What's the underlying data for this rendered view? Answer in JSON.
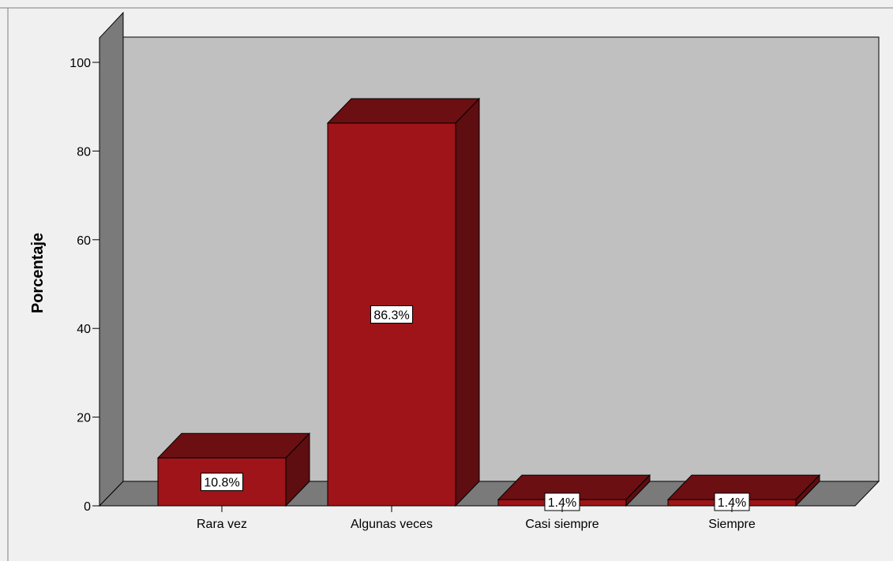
{
  "chart_data": {
    "type": "bar",
    "title": "",
    "xlabel": "",
    "ylabel": "Porcentaje",
    "categories": [
      "Rara vez",
      "Algunas veces",
      "Casi siempre",
      "Siempre"
    ],
    "values": [
      10.8,
      86.3,
      1.4,
      1.4
    ],
    "data_labels": [
      "10.8%",
      "86.3%",
      "1.4%",
      "1.4%"
    ],
    "yticks": [
      "0",
      "20",
      "40",
      "60",
      "80",
      "100"
    ],
    "ylim": [
      0,
      100
    ],
    "grid": false,
    "three_d": true,
    "colors": {
      "bar_front": "#9e1418",
      "bar_top": "#6c0f12",
      "bar_side": "#5e0d10",
      "back_wall": "#c0c0c0",
      "side_wall": "#7a7a7a",
      "floor": "#7a7a7a",
      "background": "#f0f0f0"
    }
  }
}
